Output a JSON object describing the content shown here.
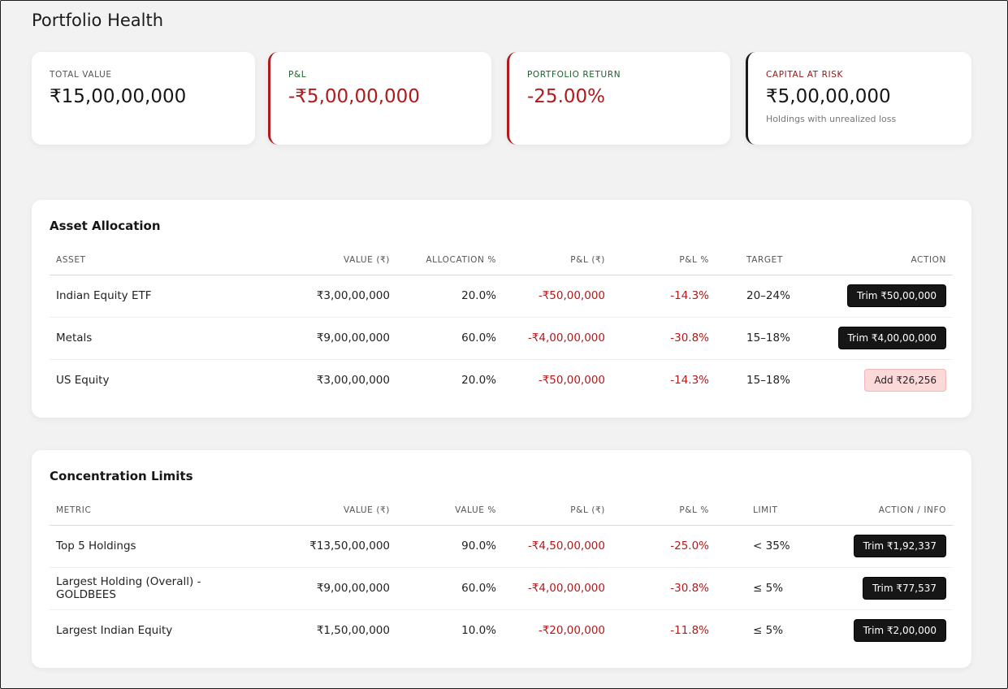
{
  "page": {
    "title": "Portfolio Health"
  },
  "summary": [
    {
      "label": "TOTAL VALUE",
      "value": "₹15,00,00,000",
      "sub": ""
    },
    {
      "label": "P&L",
      "value": "-₹5,00,00,000",
      "sub": ""
    },
    {
      "label": "PORTFOLIO RETURN",
      "value": "-25.00%",
      "sub": ""
    },
    {
      "label": "CAPITAL AT RISK",
      "value": "₹5,00,00,000",
      "sub": "Holdings with unrealized loss"
    }
  ],
  "allocation": {
    "title": "Asset Allocation",
    "headers": [
      "ASSET",
      "VALUE (₹)",
      "ALLOCATION %",
      "P&L (₹)",
      "P&L %",
      "TARGET",
      "ACTION"
    ],
    "rows": [
      {
        "name": "Indian Equity ETF",
        "value": "₹3,00,00,000",
        "pct": "20.0%",
        "pl": "-₹50,00,000",
        "plp": "-14.3%",
        "target": "20–24%",
        "action": "Trim ₹50,00,000"
      },
      {
        "name": "Metals",
        "value": "₹9,00,00,000",
        "pct": "60.0%",
        "pl": "-₹4,00,00,000",
        "plp": "-30.8%",
        "target": "15–18%",
        "action": "Trim ₹4,00,00,000"
      },
      {
        "name": "US Equity",
        "value": "₹3,00,00,000",
        "pct": "20.0%",
        "pl": "-₹50,00,000",
        "plp": "-14.3%",
        "target": "15–18%",
        "action": "Add ₹26,256"
      }
    ]
  },
  "concentration": {
    "title": "Concentration Limits",
    "headers": [
      "METRIC",
      "VALUE (₹)",
      "VALUE %",
      "P&L (₹)",
      "P&L %",
      "LIMIT",
      "ACTION / INFO"
    ],
    "rows": [
      {
        "name": "Top 5 Holdings",
        "value": "₹13,50,00,000",
        "pct": "90.0%",
        "pl": "-₹4,50,00,000",
        "plp": "-25.0%",
        "limit": "< 35%",
        "action": "Trim ₹1,92,337"
      },
      {
        "name": "Largest Holding (Overall) - GOLDBEES",
        "value": "₹9,00,00,000",
        "pct": "60.0%",
        "pl": "-₹4,00,00,000",
        "plp": "-30.8%",
        "limit": "≤ 5%",
        "action": "Trim ₹77,537"
      },
      {
        "name": "Largest Indian Equity",
        "value": "₹1,50,00,000",
        "pct": "10.0%",
        "pl": "-₹20,00,000",
        "plp": "-11.8%",
        "limit": "≤ 5%",
        "action": "Trim ₹2,00,000"
      }
    ]
  },
  "colors": {
    "negative": "#b01a1a",
    "positive_label": "#1f5f2c",
    "risk_label": "#8f1818",
    "button_dark": "#161616",
    "button_add": "#fbd9d9"
  }
}
